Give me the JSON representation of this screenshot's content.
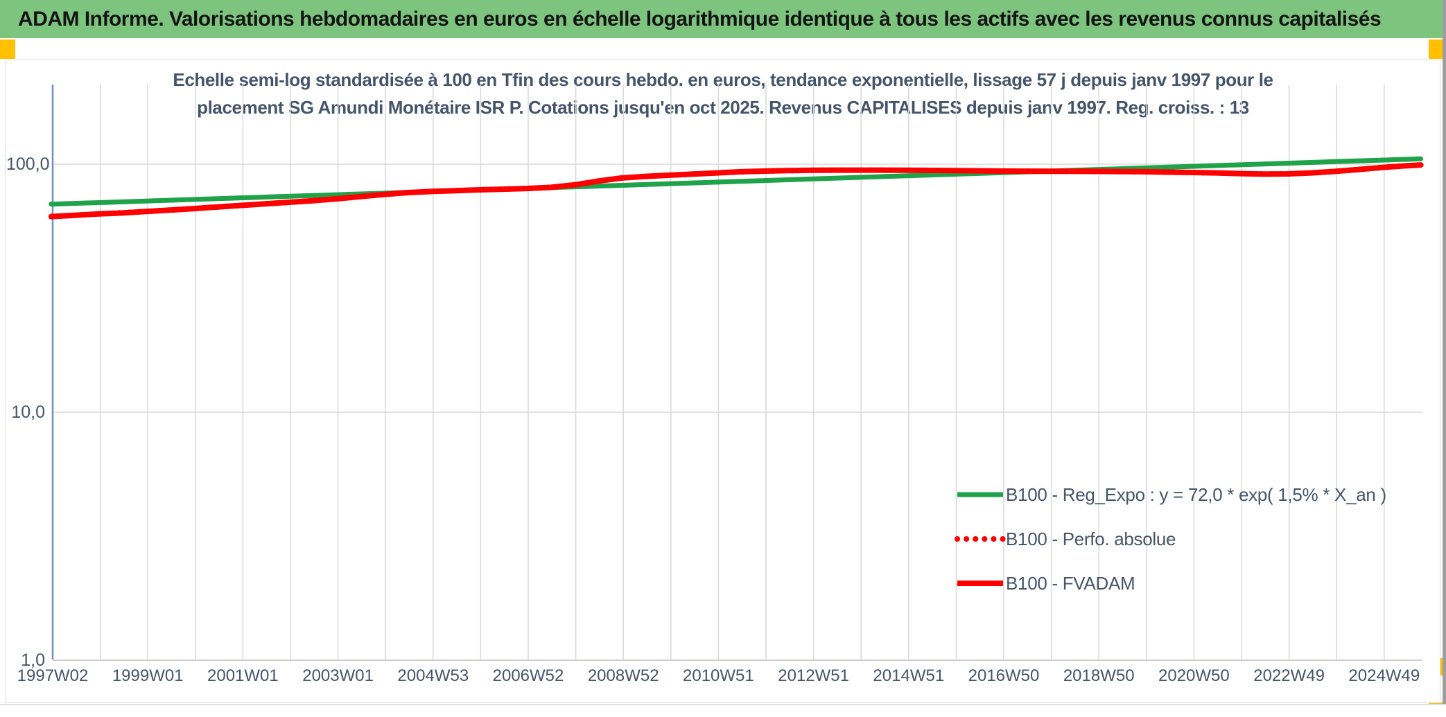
{
  "header": {
    "title": "ADAM Informe. Valorisations hebdomadaires en euros en échelle logarithmique identique à tous les actifs avec les revenus connus capitalisés"
  },
  "colors": {
    "header_green": "#7dc47e",
    "gold_accent": "#ffc000",
    "title_text": "#44546a",
    "gridline": "#d9d9d9",
    "axis_spine": "#6f8fc0",
    "axis_bottom": "#bfbfbf",
    "series_green": "#1fa24a",
    "series_red": "#fe0000"
  },
  "chart_data": {
    "type": "line",
    "title_lines": [
      "Echelle semi-log standardisée à 100 en Tfin des cours hebdo. en euros, tendance exponentielle, lissage 57 j depuis janv 1997 pour le",
      "placement SG Amundi Monétaire ISR P. Cotations jusqu'en oct 2025. Revenus CAPITALISES depuis janv 1997. Reg. croiss. : 13"
    ],
    "scale": "semi-log",
    "ylim": [
      1,
      200
    ],
    "grid": "on",
    "legend_position": "inside-bottom-right",
    "y_axis": {
      "ticks": [
        {
          "label": "100,0",
          "value": 100
        },
        {
          "label": "10,0",
          "value": 10
        },
        {
          "label": "1,0",
          "value": 1
        }
      ]
    },
    "x_axis": {
      "tick_labels": [
        "1997W02",
        "1999W01",
        "2001W01",
        "2003W01",
        "2004W53",
        "2006W52",
        "2008W52",
        "2010W51",
        "2012W51",
        "2014W51",
        "2016W50",
        "2018W50",
        "2020W50",
        "2022W49",
        "2024W49"
      ],
      "start_year": 1997.03,
      "end_year": 2025.8
    },
    "series": [
      {
        "name": "B100 - Reg_Expo : y = 72,0 * exp( 1,5% * X_an )",
        "color": "#1fa24a",
        "style": "solid",
        "stroke_width": 7,
        "points": [
          [
            1997,
            69.0
          ],
          [
            2000,
            72.1
          ],
          [
            2003,
            75.3
          ],
          [
            2006,
            78.7
          ],
          [
            2009,
            82.2
          ],
          [
            2012,
            85.9
          ],
          [
            2015,
            89.8
          ],
          [
            2018,
            93.8
          ],
          [
            2021,
            98.0
          ],
          [
            2024,
            102.4
          ],
          [
            2025.8,
            105.1
          ]
        ]
      },
      {
        "name": "B100 - Perfo. absolue",
        "color": "#fe0000",
        "style": "dotted",
        "stroke_width": 8,
        "points": [
          [
            1997,
            61.5
          ],
          [
            1998,
            63.0
          ],
          [
            1999,
            64.5
          ],
          [
            2000,
            66.2
          ],
          [
            2001,
            68.2
          ],
          [
            2002,
            70.2
          ],
          [
            2003,
            72.5
          ],
          [
            2004,
            75.5
          ],
          [
            2004.5,
            76.8
          ],
          [
            2005,
            77.6
          ],
          [
            2006,
            78.8
          ],
          [
            2007,
            79.8
          ],
          [
            2007.5,
            80.6
          ],
          [
            2008,
            82.5
          ],
          [
            2008.5,
            85.5
          ],
          [
            2009,
            88.0
          ],
          [
            2009.5,
            89.3
          ],
          [
            2010,
            90.3
          ],
          [
            2011,
            92.2
          ],
          [
            2012,
            93.8
          ],
          [
            2013,
            94.5
          ],
          [
            2014,
            94.6
          ],
          [
            2015,
            94.5
          ],
          [
            2016,
            94.2
          ],
          [
            2017,
            93.8
          ],
          [
            2018,
            93.6
          ],
          [
            2019,
            93.5
          ],
          [
            2020,
            93.2
          ],
          [
            2021,
            92.6
          ],
          [
            2022,
            91.6
          ],
          [
            2022.5,
            91.2
          ],
          [
            2023,
            91.4
          ],
          [
            2023.5,
            92.2
          ],
          [
            2024,
            93.5
          ],
          [
            2024.5,
            95.2
          ],
          [
            2025,
            97.0
          ],
          [
            2025.5,
            98.5
          ],
          [
            2025.8,
            99.3
          ]
        ]
      },
      {
        "name": "B100 - FVADAM",
        "color": "#fe0000",
        "style": "solid",
        "stroke_width": 8,
        "points": [
          [
            1997,
            61.5
          ],
          [
            1997.5,
            62.2
          ],
          [
            1998,
            63.0
          ],
          [
            1998.5,
            63.6
          ],
          [
            1999,
            64.5
          ],
          [
            1999.5,
            65.3
          ],
          [
            2000,
            66.2
          ],
          [
            2000.5,
            67.2
          ],
          [
            2001,
            68.2
          ],
          [
            2001.5,
            69.2
          ],
          [
            2002,
            70.2
          ],
          [
            2002.5,
            71.2
          ],
          [
            2003,
            72.5
          ],
          [
            2003.5,
            74.0
          ],
          [
            2004,
            75.5
          ],
          [
            2004.5,
            76.8
          ],
          [
            2005,
            77.6
          ],
          [
            2005.5,
            78.2
          ],
          [
            2006,
            78.8
          ],
          [
            2006.5,
            79.3
          ],
          [
            2007,
            79.8
          ],
          [
            2007.5,
            80.6
          ],
          [
            2008,
            82.5
          ],
          [
            2008.5,
            85.5
          ],
          [
            2009,
            88.0
          ],
          [
            2009.5,
            89.3
          ],
          [
            2010,
            90.3
          ],
          [
            2010.5,
            91.2
          ],
          [
            2011,
            92.2
          ],
          [
            2011.5,
            93.2
          ],
          [
            2012,
            93.8
          ],
          [
            2012.5,
            94.2
          ],
          [
            2013,
            94.5
          ],
          [
            2013.5,
            94.6
          ],
          [
            2014,
            94.6
          ],
          [
            2014.5,
            94.6
          ],
          [
            2015,
            94.5
          ],
          [
            2015.5,
            94.4
          ],
          [
            2016,
            94.2
          ],
          [
            2016.5,
            94.0
          ],
          [
            2017,
            93.8
          ],
          [
            2017.5,
            93.7
          ],
          [
            2018,
            93.6
          ],
          [
            2018.5,
            93.6
          ],
          [
            2019,
            93.5
          ],
          [
            2019.5,
            93.4
          ],
          [
            2020,
            93.2
          ],
          [
            2020.5,
            92.9
          ],
          [
            2021,
            92.6
          ],
          [
            2021.5,
            92.2
          ],
          [
            2022,
            91.6
          ],
          [
            2022.5,
            91.2
          ],
          [
            2023,
            91.4
          ],
          [
            2023.5,
            92.2
          ],
          [
            2024,
            93.5
          ],
          [
            2024.5,
            95.2
          ],
          [
            2025,
            97.0
          ],
          [
            2025.5,
            98.5
          ],
          [
            2025.8,
            99.3
          ]
        ]
      }
    ]
  }
}
